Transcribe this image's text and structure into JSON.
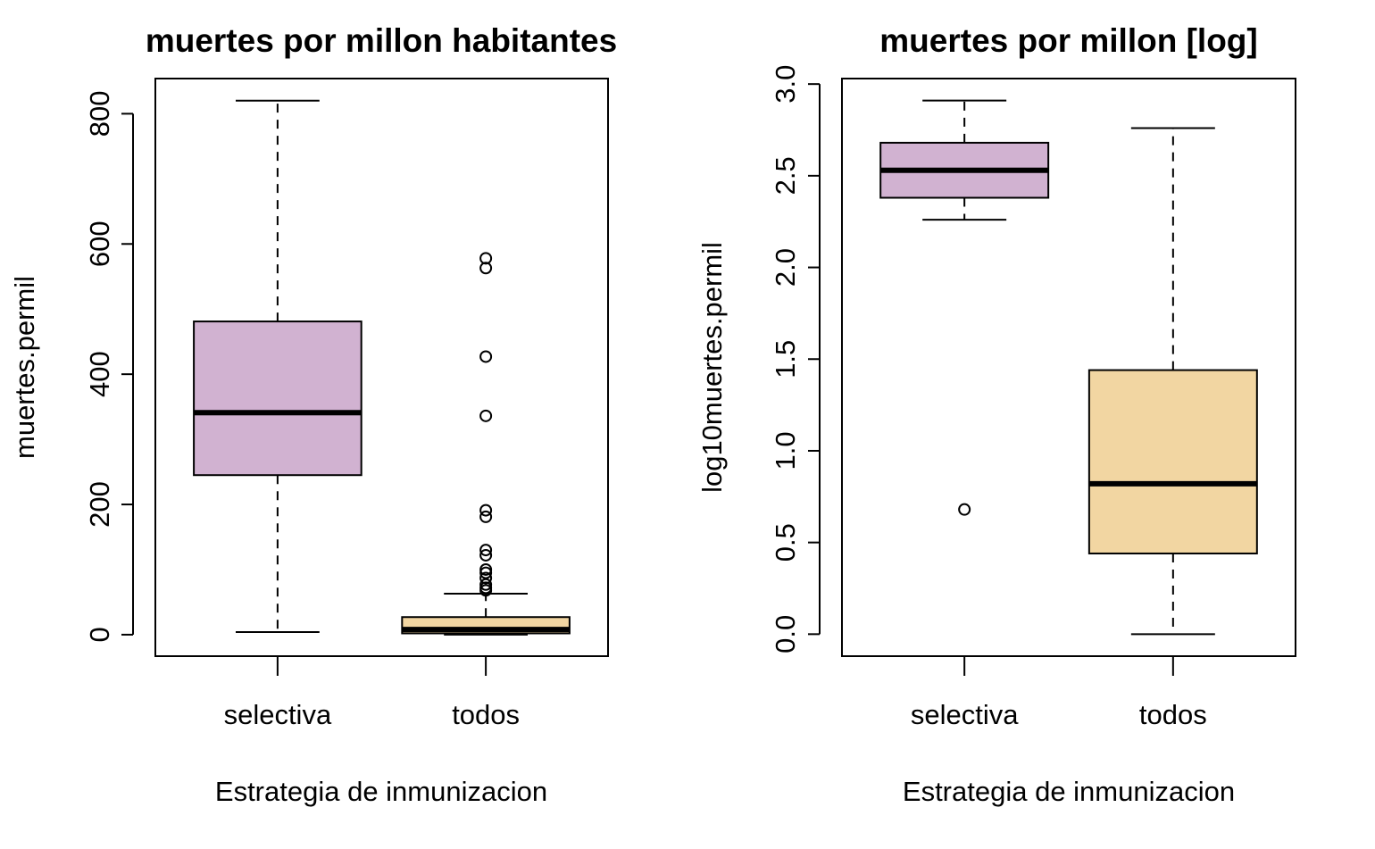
{
  "chart_data": [
    {
      "type": "boxplot",
      "title": "muertes por millon habitantes",
      "xlabel": "Estrategia de inmunizacion",
      "ylabel": "muertes.permil",
      "ylim": [
        -33,
        854
      ],
      "yticks": [
        0,
        200,
        400,
        600,
        800
      ],
      "ytick_labels": [
        "0",
        "200",
        "400",
        "600",
        "800"
      ],
      "categories": [
        "selectiva",
        "todos"
      ],
      "grid": false,
      "legend": "none",
      "boxes": [
        {
          "category": "selectiva",
          "color": "#D1B2D1",
          "whisker_low": 4,
          "q1": 245,
          "median": 341,
          "q3": 481,
          "whisker_high": 820,
          "outliers": []
        },
        {
          "category": "todos",
          "color": "#F2D6A2",
          "whisker_low": 0,
          "q1": 2,
          "median": 8,
          "q3": 27,
          "whisker_high": 63,
          "outliers": [
            578,
            563,
            427,
            336,
            191,
            181,
            130,
            122,
            100,
            95,
            87,
            77,
            72,
            68
          ]
        }
      ]
    },
    {
      "type": "boxplot",
      "title": "muertes por millon [log]",
      "xlabel": "Estrategia de inmunizacion",
      "ylabel": "log10muertes.permil",
      "ylim": [
        -0.12,
        3.03
      ],
      "yticks": [
        0,
        0.5,
        1,
        1.5,
        2,
        2.5,
        3
      ],
      "ytick_labels": [
        "0.0",
        "0.5",
        "1.0",
        "1.5",
        "2.0",
        "2.5",
        "3.0"
      ],
      "categories": [
        "selectiva",
        "todos"
      ],
      "grid": false,
      "legend": "none",
      "boxes": [
        {
          "category": "selectiva",
          "color": "#D1B2D1",
          "whisker_low": 2.26,
          "q1": 2.38,
          "median": 2.53,
          "q3": 2.68,
          "whisker_high": 2.91,
          "outliers": [
            0.68
          ]
        },
        {
          "category": "todos",
          "color": "#F2D6A2",
          "whisker_low": 0.0,
          "q1": 0.44,
          "median": 0.82,
          "q3": 1.44,
          "whisker_high": 2.76,
          "outliers": []
        }
      ]
    }
  ]
}
